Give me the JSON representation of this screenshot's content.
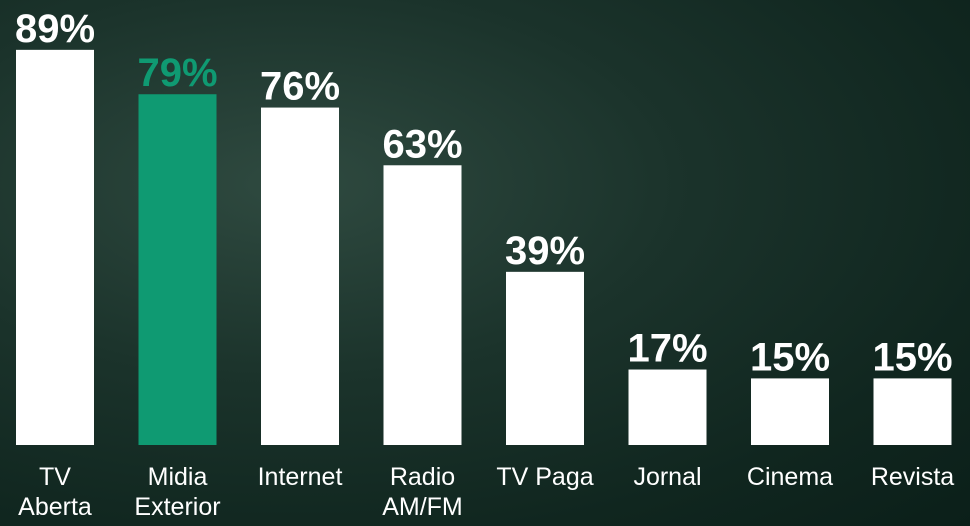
{
  "chart_data": {
    "type": "bar",
    "categories": [
      "TV\nAberta",
      "Midia\nExterior",
      "Internet",
      "Radio\nAM/FM",
      "TV Paga",
      "Jornal",
      "Cinema",
      "Revista"
    ],
    "values": [
      89,
      79,
      76,
      63,
      39,
      17,
      15,
      15
    ],
    "value_labels": [
      "89%",
      "79%",
      "76%",
      "63%",
      "39%",
      "17%",
      "15%",
      "15%"
    ],
    "colors": [
      "#ffffff",
      "#0f9a72",
      "#ffffff",
      "#ffffff",
      "#ffffff",
      "#ffffff",
      "#ffffff",
      "#ffffff"
    ],
    "ylim": [
      0,
      100
    ]
  }
}
